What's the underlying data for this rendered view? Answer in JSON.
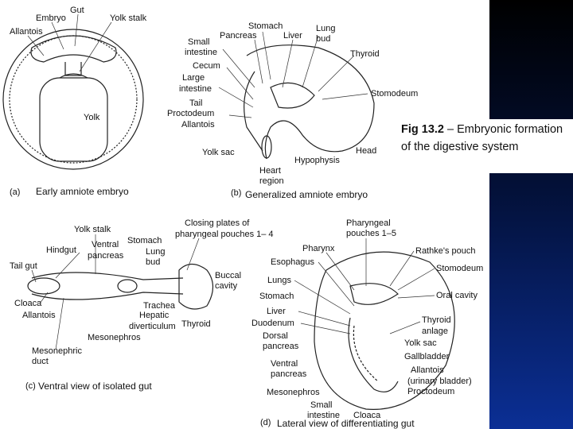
{
  "caption": {
    "figure": "Fig 13.2",
    "text": "– Embryonic formation of the digestive system"
  },
  "panels": [
    {
      "letter": "(a)",
      "title": "Early amniote embryo",
      "labels": [
        "Gut",
        "Embryo",
        "Yolk stalk",
        "Allantois",
        "Yolk"
      ]
    },
    {
      "letter": "(b)",
      "title": "Generalized amniote embryo",
      "labels": [
        "Stomach",
        "Lung",
        "bud",
        "Pancreas",
        "Liver",
        "Small",
        "intestine",
        "Thyroid",
        "Cecum",
        "Large",
        "intestine",
        "Stomodeum",
        "Tail",
        "Proctodeum",
        "Allantois",
        "Yolk sac",
        "Head",
        "Hypophysis",
        "Heart",
        "region"
      ]
    },
    {
      "letter": "(c)",
      "title": "Ventral view of isolated gut",
      "labels": [
        "Yolk stalk",
        "Closing plates of",
        "pharyngeal pouches 1– 4",
        "Ventral",
        "Stomach",
        "Hindgut",
        "pancreas",
        "Lung",
        "bud",
        "Tail gut",
        "Buccal",
        "cavity",
        "Cloaca",
        "Trachea",
        "Allantois",
        "Hepatic",
        "diverticulum",
        "Thyroid",
        "Mesonephros",
        "Mesonephric",
        "duct"
      ]
    },
    {
      "letter": "(d)",
      "title": "Lateral view of differentiating gut",
      "labels": [
        "Pharyngeal",
        "pouches 1–5",
        "Pharynx",
        "Rathke's pouch",
        "Esophagus",
        "Stomodeum",
        "Lungs",
        "Oral cavity",
        "Stomach",
        "Liver",
        "Thyroid",
        "anlage",
        "Duodenum",
        "Dorsal",
        "pancreas",
        "Yolk sac",
        "Gallbladder",
        "Ventral",
        "pancreas",
        "Allantois",
        "(urinary bladder)",
        "Proctodeum",
        "Mesonephros",
        "Small",
        "intestine",
        "Cloaca"
      ]
    }
  ]
}
